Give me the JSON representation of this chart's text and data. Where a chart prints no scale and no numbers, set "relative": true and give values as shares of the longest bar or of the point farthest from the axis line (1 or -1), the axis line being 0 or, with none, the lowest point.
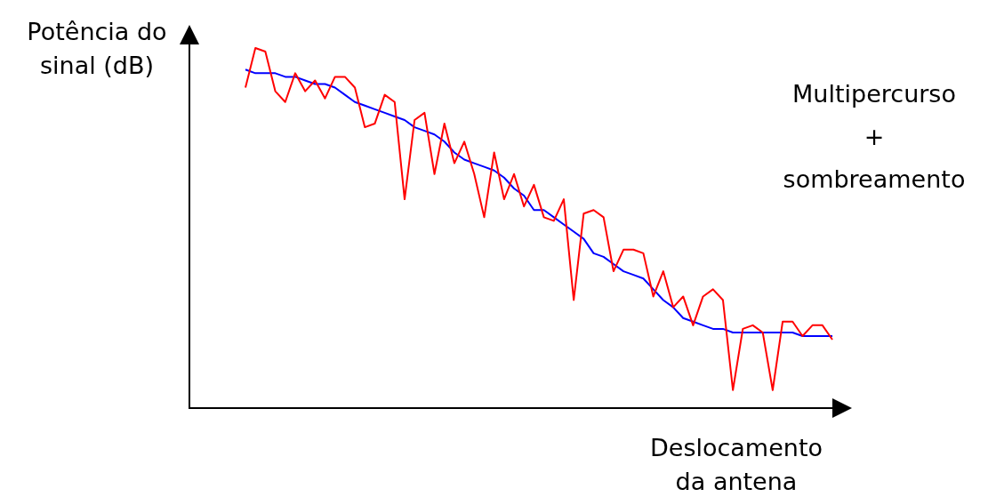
{
  "chart_data": {
    "type": "line",
    "relative": true,
    "legend": false,
    "marker": "none",
    "ylabel": "Potência do sinal (dB)",
    "xlabel": "Deslocamento da antena",
    "annotations": [
      "Multipercurso + sombreamento"
    ],
    "categories": [
      null,
      null,
      null,
      null,
      null,
      null,
      null,
      null,
      null,
      null,
      null,
      null,
      null,
      null,
      null,
      null,
      null,
      null,
      null,
      null,
      null,
      null,
      null,
      null,
      null,
      null,
      null,
      null,
      null,
      null,
      null,
      null,
      null,
      null,
      null,
      null,
      null,
      null,
      null,
      null,
      null,
      null,
      null,
      null,
      null,
      null,
      null,
      null,
      null,
      null,
      null,
      null,
      null,
      null,
      null,
      null,
      null,
      null,
      null,
      null
    ],
    "series": [
      {
        "color": "#ff0000",
        "values": [
          0.89,
          1.0,
          0.99,
          0.88,
          0.85,
          0.93,
          0.88,
          0.91,
          0.86,
          0.92,
          0.92,
          0.89,
          0.78,
          0.79,
          0.87,
          0.85,
          0.58,
          0.8,
          0.82,
          0.65,
          0.79,
          0.68,
          0.74,
          0.65,
          0.53,
          0.71,
          0.58,
          0.65,
          0.56,
          0.62,
          0.53,
          0.52,
          0.58,
          0.3,
          0.54,
          0.55,
          0.53,
          0.38,
          0.44,
          0.44,
          0.43,
          0.31,
          0.38,
          0.28,
          0.31,
          0.23,
          0.31,
          0.33,
          0.3,
          0.05,
          0.22,
          0.23,
          0.21,
          0.05,
          0.24,
          0.24,
          0.2,
          0.23,
          0.23,
          0.19
        ]
      },
      {
        "color": "#0000ff",
        "values": [
          0.94,
          0.93,
          0.93,
          0.93,
          0.92,
          0.92,
          0.91,
          0.9,
          0.9,
          0.89,
          0.87,
          0.85,
          0.84,
          0.83,
          0.82,
          0.81,
          0.8,
          0.78,
          0.77,
          0.76,
          0.74,
          0.71,
          0.69,
          0.68,
          0.67,
          0.66,
          0.64,
          0.61,
          0.59,
          0.55,
          0.55,
          0.53,
          0.51,
          0.49,
          0.47,
          0.43,
          0.42,
          0.4,
          0.38,
          0.37,
          0.36,
          0.33,
          0.3,
          0.28,
          0.25,
          0.24,
          0.23,
          0.22,
          0.22,
          0.21,
          0.21,
          0.21,
          0.21,
          0.21,
          0.21,
          0.21,
          0.2,
          0.2,
          0.2,
          0.2
        ]
      }
    ]
  }
}
